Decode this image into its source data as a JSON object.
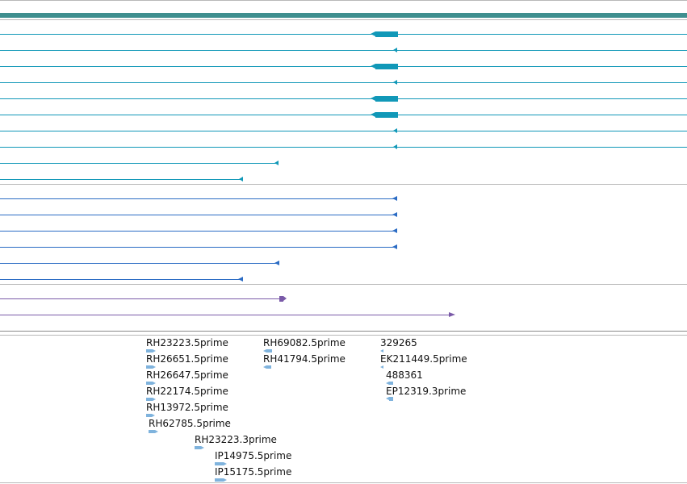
{
  "colors": {
    "banner": "#3f8f8f",
    "separator": "#b8b8b8",
    "transcript_teal": "#1198b8",
    "transcript_blue": "#2b6cc4",
    "transcript_purple": "#7a5aa8",
    "est_feature": "#7fb3dd"
  },
  "est_labels": {
    "col1": [
      "RH23223.5prime",
      "RH26651.5prime",
      "RH26647.5prime",
      "RH22174.5prime",
      "RH13972.5prime",
      "RH62785.5prime"
    ],
    "col1b": [
      "RH23223.3prime",
      "IP14975.5prime",
      "IP15175.5prime"
    ],
    "col2": [
      "RH69082.5prime",
      "RH41794.5prime"
    ],
    "col3": [
      "329265",
      "EK211449.5prime",
      "488361",
      "EP12319.3prime"
    ]
  }
}
